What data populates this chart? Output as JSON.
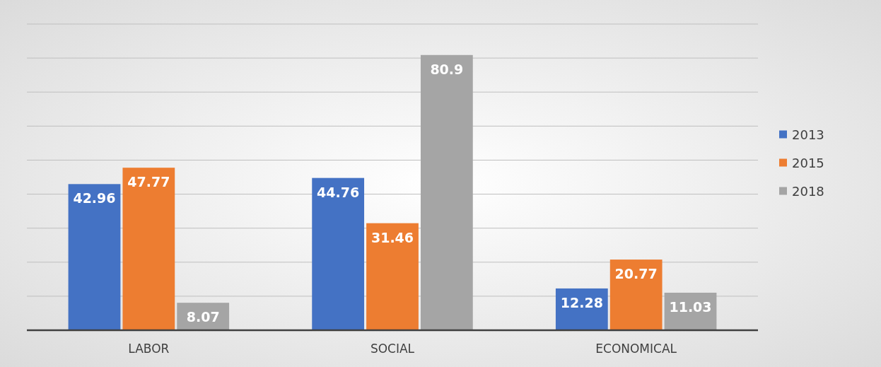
{
  "chart_data": {
    "type": "bar",
    "categories": [
      "LABOR",
      "SOCIAL",
      "ECONOMICAL"
    ],
    "series": [
      {
        "name": "2013",
        "color": "#4472c4",
        "values": [
          42.96,
          44.76,
          12.28
        ]
      },
      {
        "name": "2015",
        "color": "#ed7d31",
        "values": [
          47.77,
          31.46,
          20.77
        ]
      },
      {
        "name": "2018",
        "color": "#a5a5a5",
        "values": [
          8.07,
          80.9,
          11.03
        ]
      }
    ],
    "ylim": [
      0,
      90
    ],
    "yticks": [
      {
        "value": 0,
        "label": null
      },
      {
        "value": 10,
        "label": null
      },
      {
        "value": 20,
        "label": null
      },
      {
        "value": 30,
        "label": null
      },
      {
        "value": 40,
        "label": null
      },
      {
        "value": 50,
        "label": null
      },
      {
        "value": 60,
        "label": null
      },
      {
        "value": 70,
        "label": null
      },
      {
        "value": 80,
        "label": null
      },
      {
        "value": 90,
        "label": null
      }
    ],
    "grid": "y",
    "tick_labels": "x",
    "data_labels": true,
    "legend": "right"
  }
}
